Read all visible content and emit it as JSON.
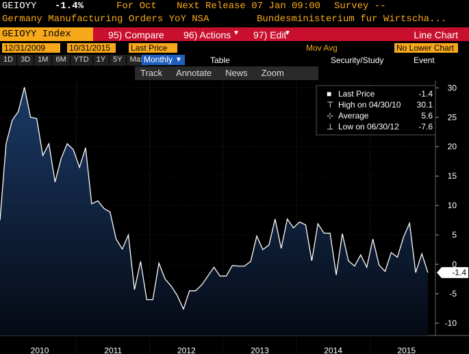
{
  "header": {
    "ticker": "GEIOYY",
    "change": "-1.4%",
    "for_label": "For Oct",
    "next_release": "Next Release 07 Jan 09:00",
    "survey": "Survey --",
    "description": "Germany Manufacturing Orders YoY NSA",
    "source": "Bundesministerium fur Wirtscha..."
  },
  "toolbar": {
    "security": "GEIOYY Index",
    "compare": "95) Compare",
    "actions": "96) Actions",
    "edit": "97) Edit",
    "chart_kind": "Line Chart"
  },
  "range": {
    "start": "12/31/2009",
    "end": "10/31/2015",
    "field": "Last Price",
    "mov_avg": "Mov Avg",
    "lower": "No Lower Chart"
  },
  "periods": [
    "1D",
    "3D",
    "1M",
    "6M",
    "YTD",
    "1Y",
    "5Y",
    "Max"
  ],
  "frequency": "Monthly",
  "table": "Table",
  "security_study": "Security/Study",
  "event": "Event",
  "tools": [
    "Track",
    "Annotate",
    "News",
    "Zoom"
  ],
  "chart_data": {
    "type": "area",
    "color": "#ffffff",
    "xlim": [
      "12/31/2009",
      "10/31/2015"
    ],
    "xlabels": [
      "2010",
      "2011",
      "2012",
      "2013",
      "2014",
      "2015"
    ],
    "values": [
      7.5,
      20.5,
      24.5,
      26,
      30.1,
      25,
      24.8,
      18.5,
      20.5,
      14,
      18,
      20.5,
      19.5,
      16.5,
      19.8,
      10.3,
      10.8,
      9.5,
      8.9,
      4.3,
      2.6,
      5,
      -4.3,
      0.5,
      -6,
      -6,
      0.2,
      -2.5,
      -3.7,
      -5.3,
      -7.6,
      -4.5,
      -4.5,
      -3.5,
      -2,
      -0.5,
      -2,
      -2,
      -0.2,
      -0.3,
      -0.3,
      0.5,
      4.8,
      2.5,
      3.3,
      7.7,
      2.7,
      7.7,
      6.2,
      7.2,
      6.7,
      0.6,
      6.9,
      5.3,
      5.3,
      -1.8,
      5.2,
      0.6,
      -0.3,
      1.6,
      -0.5,
      4.3,
      -0.1,
      -1.2,
      2,
      1.2,
      4.6,
      7,
      -1.4,
      1.8,
      -1.4
    ],
    "ylim": [
      -12.1,
      31.2
    ],
    "yticks": [
      -10,
      -5,
      0,
      5,
      10,
      15,
      20,
      25,
      30
    ],
    "grid": true,
    "legend": [
      {
        "label": "Last Price",
        "value": -1.4
      },
      {
        "label": "High on 04/30/10",
        "value": 30.1
      },
      {
        "label": "Average",
        "value": 5.6
      },
      {
        "label": "Low on 06/30/12",
        "value": -7.6
      }
    ]
  }
}
